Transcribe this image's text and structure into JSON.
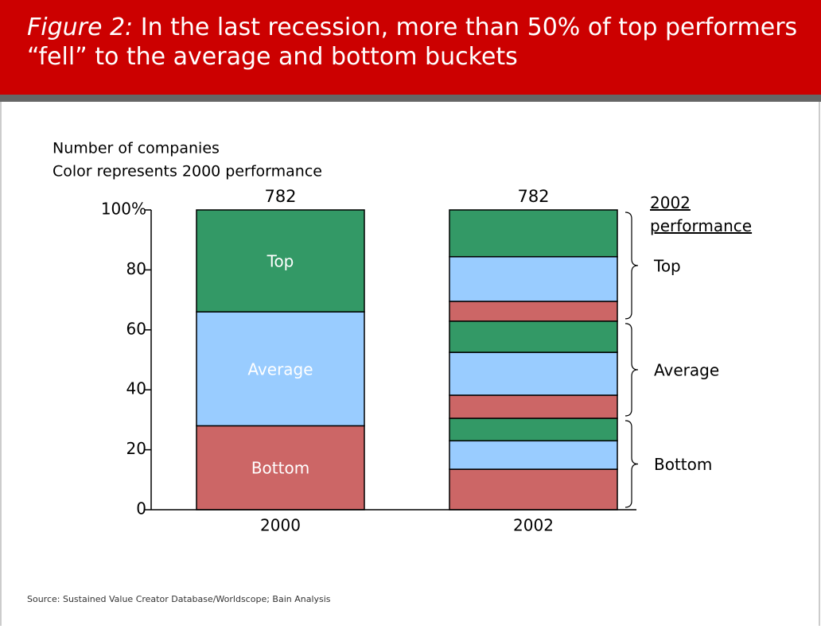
{
  "chart_data": {
    "type": "stacked_bar",
    "title_prefix": "Figure 2:",
    "title": "In the last recession, more than 50% of top performers “fell” to the average and bottom buckets",
    "subtitle": [
      "Number of companies",
      "Color represents 2000 performance"
    ],
    "ylim": [
      0,
      100
    ],
    "yticks": [
      0,
      20,
      40,
      60,
      80,
      {
        "value": 100,
        "label": "100%"
      }
    ],
    "bars": [
      {
        "category": "2000",
        "total": 782,
        "segments": [
          {
            "label": "Bottom",
            "color": "#cc6666",
            "value": 28
          },
          {
            "label": "Average",
            "color": "#99ccff",
            "value": 38
          },
          {
            "label": "Top",
            "color": "#339966",
            "value": 34
          }
        ]
      },
      {
        "category": "2002",
        "total": 782,
        "bracket_title": "2002 performance",
        "groups": [
          {
            "label": "Bottom",
            "segments": [
              {
                "color": "#cc6666",
                "value": 13.5
              },
              {
                "color": "#99ccff",
                "value": 9.5
              },
              {
                "color": "#339966",
                "value": 7.5
              }
            ]
          },
          {
            "label": "Average",
            "segments": [
              {
                "color": "#cc6666",
                "value": 7.7
              },
              {
                "color": "#99ccff",
                "value": 14.3
              },
              {
                "color": "#339966",
                "value": 10.4
              }
            ]
          },
          {
            "label": "Top",
            "segments": [
              {
                "color": "#cc6666",
                "value": 6.6
              },
              {
                "color": "#99ccff",
                "value": 14.9
              },
              {
                "color": "#339966",
                "value": 15.6
              }
            ]
          }
        ]
      }
    ],
    "source": "Source: Sustained Value Creator Database/Worldscope; Bain Analysis"
  }
}
